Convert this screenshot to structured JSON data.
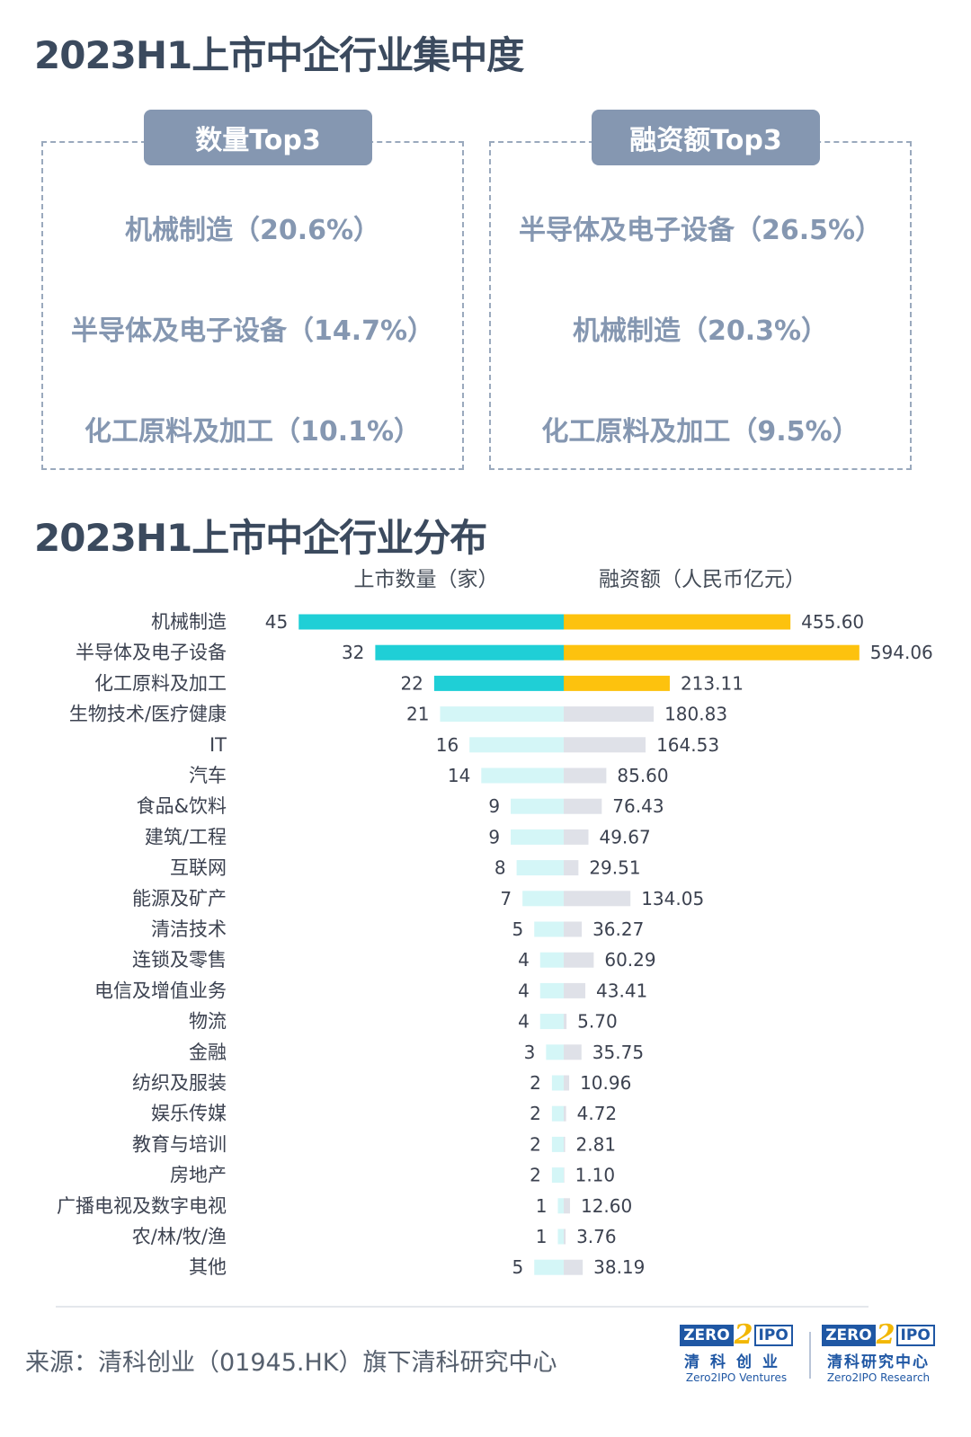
{
  "titles": {
    "concentration": "2023H1上市中企行业集中度",
    "distribution": "2023H1上市中企行业分布"
  },
  "panels": {
    "count": {
      "header": "数量Top3",
      "items": [
        "机械制造（20.6%）",
        "半导体及电子设备（14.7%）",
        "化工原料及加工（10.1%）"
      ]
    },
    "amount": {
      "header": "融资额Top3",
      "items": [
        "半导体及电子设备（26.5%）",
        "机械制造（20.3%）",
        "化工原料及加工（9.5%）"
      ]
    }
  },
  "chart_data": {
    "type": "bar",
    "orientation": "horizontal-diverging",
    "series": [
      {
        "name": "上市数量（家）",
        "values": [
          45,
          32,
          22,
          21,
          16,
          14,
          9,
          9,
          8,
          7,
          5,
          4,
          4,
          4,
          3,
          2,
          2,
          2,
          2,
          1,
          1,
          5
        ],
        "labels": [
          "45",
          "32",
          "22",
          "21",
          "16",
          "14",
          "9",
          "9",
          "8",
          "7",
          "5",
          "4",
          "4",
          "4",
          "3",
          "2",
          "2",
          "2",
          "2",
          "1",
          "1",
          "5"
        ]
      },
      {
        "name": "融资额（人民币亿元）",
        "values": [
          455.6,
          594.06,
          213.11,
          180.83,
          164.53,
          85.6,
          76.43,
          49.67,
          29.51,
          134.05,
          36.27,
          60.29,
          43.41,
          5.7,
          35.75,
          10.96,
          4.72,
          2.81,
          1.1,
          12.6,
          3.76,
          38.19
        ],
        "labels": [
          "455.60",
          "594.06",
          "213.11",
          "180.83",
          "164.53",
          "85.60",
          "76.43",
          "49.67",
          "29.51",
          "134.05",
          "36.27",
          "60.29",
          "43.41",
          "5.70",
          "35.75",
          "10.96",
          "4.72",
          "2.81",
          "1.10",
          "12.60",
          "3.76",
          "38.19"
        ]
      }
    ],
    "categories": [
      "机械制造",
      "半导体及电子设备",
      "化工原料及加工",
      "生物技术/医疗健康",
      "IT",
      "汽车",
      "食品&饮料",
      "建筑/工程",
      "互联网",
      "能源及矿产",
      "清洁技术",
      "连锁及零售",
      "电信及增值业务",
      "物流",
      "金融",
      "纺织及服装",
      "娱乐传媒",
      "教育与培训",
      "房地产",
      "广播电视及数字电视",
      "农/林/牧/渔",
      "其他"
    ],
    "highlight_count": 3,
    "colors": {
      "count_highlight": "#1fcfd6",
      "count_normal": "#d4f6f7",
      "amount_highlight": "#fdc20e",
      "amount_normal": "#dfe1e8"
    }
  },
  "footer": {
    "source": "来源：清科创业（01945.HK）旗下清科研究中心",
    "logo_ventures": {
      "zero": "ZERO",
      "two": "2",
      "ipo": "IPO",
      "cn": "清科创业",
      "en": "Zero2IPO Ventures"
    },
    "logo_research": {
      "zero": "ZERO",
      "two": "2",
      "ipo": "IPO",
      "cn": "清科研究中心",
      "en": "Zero2IPO Research"
    }
  }
}
